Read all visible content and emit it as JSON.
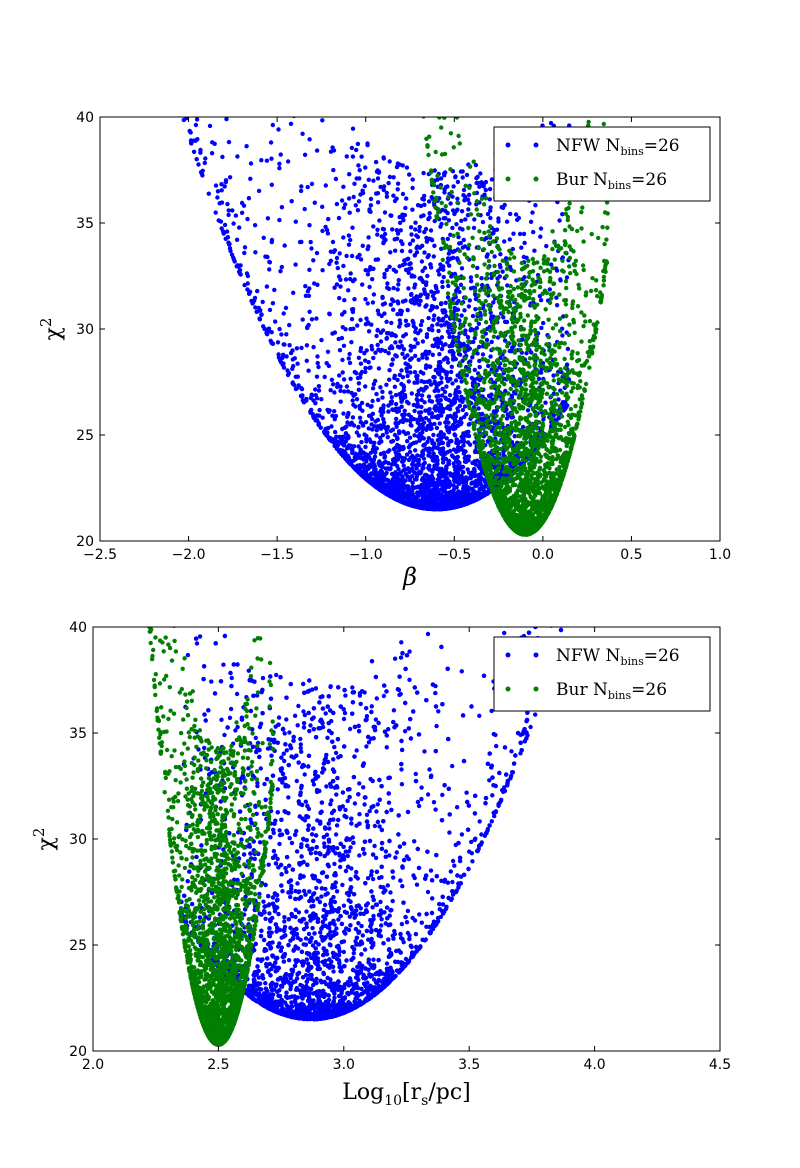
{
  "colors": {
    "nfw": "#0000ff",
    "bur": "#007f00"
  },
  "chart_data": [
    {
      "type": "scatter",
      "xlabel": "β",
      "ylabel": "χ",
      "ylabel_superscript": "2",
      "xlim": [
        -2.5,
        1.0
      ],
      "ylim": [
        20,
        40
      ],
      "xticks": [
        "−2.5",
        "−2.0",
        "−1.5",
        "−1.0",
        "−0.5",
        "0.0",
        "0.5",
        "1.0"
      ],
      "xtick_values": [
        -2.5,
        -2.0,
        -1.5,
        -1.0,
        -0.5,
        0.0,
        0.5,
        1.0
      ],
      "yticks": [
        "20",
        "25",
        "30",
        "35",
        "40"
      ],
      "ytick_values": [
        20,
        25,
        30,
        35,
        40
      ],
      "grid": false,
      "legend_position": "top-right",
      "series": [
        {
          "name": "NFW",
          "label": {
            "name": "NFW",
            "n": "N",
            "sub": "bins",
            "eq": "=26"
          },
          "color": "#0000ff",
          "cloud": {
            "xmin": -2.25,
            "xmax": 0.15,
            "ymin": 21.5,
            "yvertex": -0.6,
            "curvature": 9.0,
            "spread": 16,
            "count": 4200
          }
        },
        {
          "name": "Bur",
          "label": {
            "name": "Bur",
            "n": "N",
            "sub": "bins",
            "eq": "=26"
          },
          "color": "#007f00",
          "cloud": {
            "xmin": -0.75,
            "xmax": 0.37,
            "ymin": 20.3,
            "yvertex": -0.1,
            "curvature": 60.0,
            "spread": 13,
            "count": 2600
          }
        }
      ]
    },
    {
      "type": "scatter",
      "xlabel": "Log",
      "xlabel_sub": "10",
      "xlabel_rest": "[r",
      "xlabel_sub2": "s",
      "xlabel_end": "/pc]",
      "ylabel": "χ",
      "ylabel_superscript": "2",
      "xlim": [
        2.0,
        4.5
      ],
      "ylim": [
        20,
        40
      ],
      "xticks": [
        "2.0",
        "2.5",
        "3.0",
        "3.5",
        "4.0",
        "4.5"
      ],
      "xtick_values": [
        2.0,
        2.5,
        3.0,
        3.5,
        4.0,
        4.5
      ],
      "yticks": [
        "20",
        "25",
        "30",
        "35",
        "40"
      ],
      "ytick_values": [
        20,
        25,
        30,
        35,
        40
      ],
      "grid": false,
      "legend_position": "top-right",
      "series": [
        {
          "name": "NFW",
          "label": {
            "name": "NFW",
            "n": "N",
            "sub": "bins",
            "eq": "=26"
          },
          "color": "#0000ff",
          "cloud": {
            "xmin": 2.35,
            "xmax": 4.1,
            "ymin": 21.5,
            "yvertex": 2.87,
            "curvature": 18.0,
            "spread": 16,
            "count": 4200
          }
        },
        {
          "name": "Bur",
          "label": {
            "name": "Bur",
            "n": "N",
            "sub": "bins",
            "eq": "=26"
          },
          "color": "#007f00",
          "cloud": {
            "xmin": 2.2,
            "xmax": 2.72,
            "ymin": 20.3,
            "yvertex": 2.5,
            "curvature": 260.0,
            "spread": 14,
            "count": 2600
          }
        }
      ]
    }
  ]
}
